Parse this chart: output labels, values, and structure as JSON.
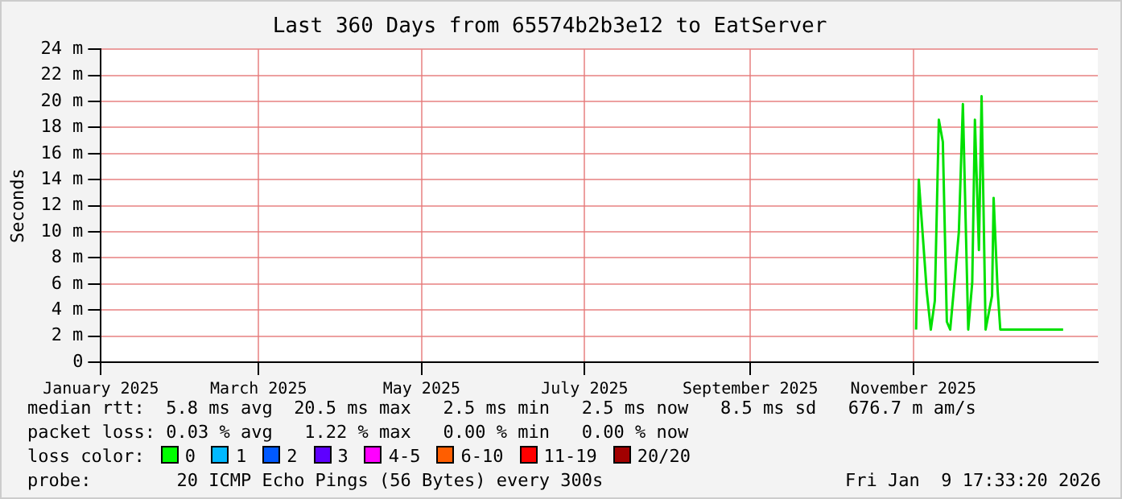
{
  "chart_data": {
    "type": "line",
    "title": "Last 360 Days from 65574b2b3e12 to EatServer",
    "ylabel": "Seconds",
    "x": [
      "2025-11-02",
      "2025-11-03",
      "2025-11-04T12:00",
      "2025-11-06",
      "2025-11-07T12:00",
      "2025-11-09",
      "2025-11-10T12:00",
      "2025-11-12",
      "2025-11-13T12:00",
      "2025-11-14T18:00",
      "2025-11-16",
      "2025-11-18",
      "2025-11-19T12:00",
      "2025-11-21T12:00",
      "2025-11-23",
      "2025-11-24",
      "2025-11-25T12:00",
      "2025-11-26T12:00",
      "2025-11-28",
      "2025-11-30T10:00",
      "2025-12-01",
      "2025-12-02T12:00",
      "2025-12-03T12:00",
      "2025-12-27"
    ],
    "series": [
      {
        "color": "#00e000",
        "values": [
          2.5,
          14,
          9.7,
          5.4,
          2.5,
          4.7,
          18.6,
          16.9,
          3.1,
          2.5,
          5.3,
          10,
          19.8,
          2.5,
          6.1,
          18.6,
          8.6,
          20.4,
          2.5,
          5.1,
          12.6,
          5.5,
          2.5,
          2.5
        ]
      }
    ],
    "xlim": [
      "2025-01-01",
      "2026-01-09"
    ],
    "xticks": [
      {
        "value": "2025-01-01",
        "label": "January 2025"
      },
      {
        "value": "2025-03-01",
        "label": "March 2025"
      },
      {
        "value": "2025-05-01",
        "label": "May 2025"
      },
      {
        "value": "2025-07-01",
        "label": "July 2025"
      },
      {
        "value": "2025-09-01",
        "label": "September 2025"
      },
      {
        "value": "2025-11-01",
        "label": "November 2025"
      }
    ],
    "ylim": [
      0,
      24
    ],
    "yticks": [
      0,
      {
        "value": 2,
        "label": "2 m"
      },
      {
        "value": 4,
        "label": "4 m"
      },
      {
        "value": 6,
        "label": "6 m"
      },
      {
        "value": 8,
        "label": "8 m"
      },
      {
        "value": 10,
        "label": "10 m"
      },
      {
        "value": 12,
        "label": "12 m"
      },
      {
        "value": 14,
        "label": "14 m"
      },
      {
        "value": 16,
        "label": "16 m"
      },
      {
        "value": 18,
        "label": "18 m"
      },
      {
        "value": 20,
        "label": "20 m"
      },
      {
        "value": 22,
        "label": "22 m"
      },
      {
        "value": 24,
        "label": "24 m"
      }
    ],
    "grid": true,
    "marker": "none",
    "line_style": "solid",
    "annotations": [
      "median rtt:  5.8 ms avg  20.5 ms max   2.5 ms min   2.5 ms now   8.5 ms sd   676.7 m am/s",
      "packet loss: 0.03 % avg   1.22 % max   0.00 % min   0.00 % now",
      "loss color:",
      "0",
      "1",
      "2",
      "3",
      "4-5",
      "6-10",
      "11-19",
      "20/20",
      "probe:        20 ICMP Echo Pings (56 Bytes) every 300s",
      "Fri Jan  9 17:33:20 2026"
    ]
  }
}
